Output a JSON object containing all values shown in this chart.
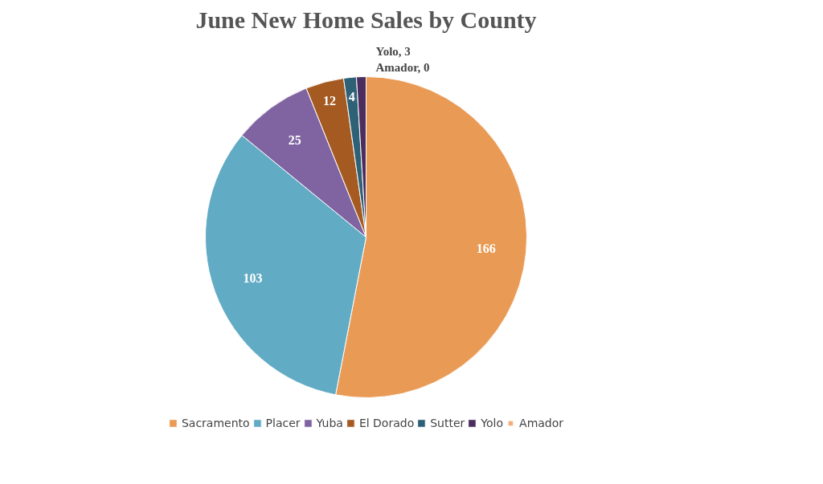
{
  "chart_data": {
    "type": "pie",
    "title": "June New Home Sales by County",
    "categories": [
      "Sacramento",
      "Placer",
      "Yuba",
      "El Dorado",
      "Sutter",
      "Yolo",
      "Amador"
    ],
    "values": [
      166,
      103,
      25,
      12,
      4,
      3,
      0
    ],
    "colors": [
      "#e99b55",
      "#62abc4",
      "#8064a2",
      "#a55a22",
      "#2e6176",
      "#4b2e5e",
      "#f2ae7a"
    ],
    "value_labels": [
      "166",
      "103",
      "25",
      "12",
      "4",
      "Yolo, 3",
      "Amador, 0"
    ],
    "legend": "bottom"
  }
}
